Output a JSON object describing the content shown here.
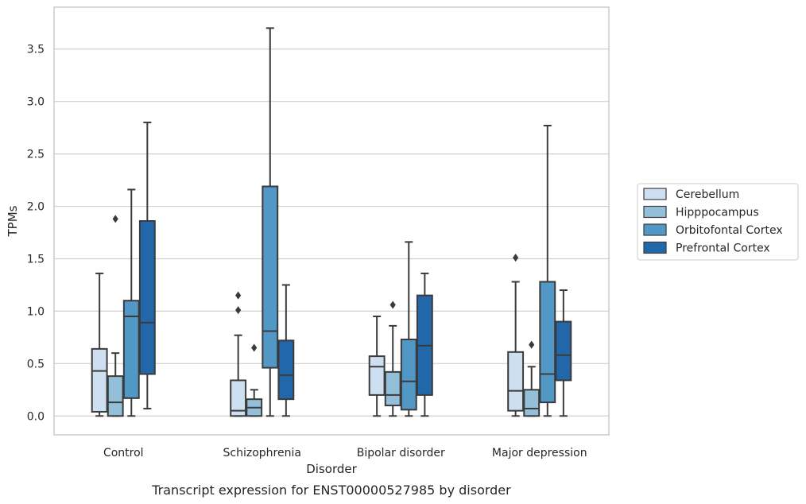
{
  "chart_data": {
    "type": "boxplot",
    "caption": "Transcript expression for ENST00000527985 by disorder",
    "xlabel": "Disorder",
    "ylabel": "TPMs",
    "ylim": [
      -0.18,
      3.9
    ],
    "yticks": [
      0.0,
      0.5,
      1.0,
      1.5,
      2.0,
      2.5,
      3.0,
      3.5
    ],
    "ytick_labels": [
      "0.0",
      "0.5",
      "1.0",
      "1.5",
      "2.0",
      "2.5",
      "3.0",
      "3.5"
    ],
    "grid": "horizontal",
    "legend_position": "right",
    "categories": [
      "Control",
      "Schizophrenia",
      "Bipolar disorder",
      "Major depression"
    ],
    "series": [
      {
        "name": "Cerebellum",
        "color": "#cddff0",
        "boxes": [
          {
            "whislo": 0.0,
            "q1": 0.04,
            "med": 0.43,
            "q3": 0.64,
            "whishi": 1.36,
            "fliers": []
          },
          {
            "whislo": 0.0,
            "q1": 0.0,
            "med": 0.05,
            "q3": 0.34,
            "whishi": 0.77,
            "fliers": [
              1.01,
              1.15
            ]
          },
          {
            "whislo": 0.0,
            "q1": 0.2,
            "med": 0.47,
            "q3": 0.57,
            "whishi": 0.95,
            "fliers": []
          },
          {
            "whislo": 0.0,
            "q1": 0.05,
            "med": 0.24,
            "q3": 0.61,
            "whishi": 1.28,
            "fliers": [
              1.51
            ]
          }
        ]
      },
      {
        "name": "Hipppocampus",
        "color": "#94bfd9",
        "boxes": [
          {
            "whislo": 0.0,
            "q1": 0.0,
            "med": 0.13,
            "q3": 0.38,
            "whishi": 0.6,
            "fliers": [
              1.88
            ]
          },
          {
            "whislo": 0.0,
            "q1": 0.0,
            "med": 0.08,
            "q3": 0.16,
            "whishi": 0.25,
            "fliers": [
              0.65
            ]
          },
          {
            "whislo": 0.0,
            "q1": 0.1,
            "med": 0.2,
            "q3": 0.42,
            "whishi": 0.86,
            "fliers": [
              1.06
            ]
          },
          {
            "whislo": 0.0,
            "q1": 0.0,
            "med": 0.07,
            "q3": 0.25,
            "whishi": 0.47,
            "fliers": [
              0.68
            ]
          }
        ]
      },
      {
        "name": "Orbitofontal Cortex",
        "color": "#5198c6",
        "boxes": [
          {
            "whislo": 0.0,
            "q1": 0.17,
            "med": 0.95,
            "q3": 1.1,
            "whishi": 2.16,
            "fliers": []
          },
          {
            "whislo": 0.0,
            "q1": 0.46,
            "med": 0.81,
            "q3": 2.19,
            "whishi": 3.7,
            "fliers": []
          },
          {
            "whislo": 0.0,
            "q1": 0.06,
            "med": 0.33,
            "q3": 0.73,
            "whishi": 1.66,
            "fliers": []
          },
          {
            "whislo": 0.0,
            "q1": 0.13,
            "med": 0.4,
            "q3": 1.28,
            "whishi": 2.77,
            "fliers": []
          }
        ]
      },
      {
        "name": "Prefrontal Cortex",
        "color": "#2267a9",
        "boxes": [
          {
            "whislo": 0.07,
            "q1": 0.4,
            "med": 0.89,
            "q3": 1.86,
            "whishi": 2.8,
            "fliers": []
          },
          {
            "whislo": 0.0,
            "q1": 0.16,
            "med": 0.39,
            "q3": 0.72,
            "whishi": 1.25,
            "fliers": []
          },
          {
            "whislo": 0.0,
            "q1": 0.2,
            "med": 0.67,
            "q3": 1.15,
            "whishi": 1.36,
            "fliers": []
          },
          {
            "whislo": 0.0,
            "q1": 0.34,
            "med": 0.58,
            "q3": 0.9,
            "whishi": 1.2,
            "fliers": []
          }
        ]
      }
    ]
  }
}
